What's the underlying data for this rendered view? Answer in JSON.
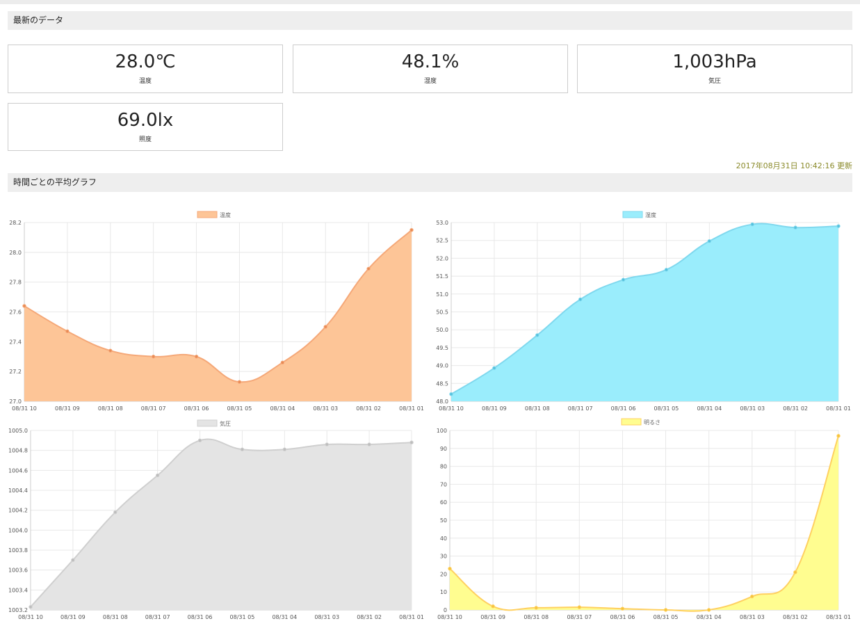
{
  "latest": {
    "title": "最新のデータ",
    "cards": [
      {
        "value": "28.0℃",
        "label": "温度"
      },
      {
        "value": "48.1%",
        "label": "湿度"
      },
      {
        "value": "1,003hPa",
        "label": "気圧"
      },
      {
        "value": "69.0lx",
        "label": "照度"
      }
    ],
    "updated": "2017年08月31日 10:42:16 更新"
  },
  "graphs": {
    "title": "時間ごとの平均グラフ"
  },
  "colors": {
    "temperature_fill": "#fdc597",
    "temperature_line": "#f5a878",
    "temperature_point": "#e88a55",
    "humidity_fill": "#9aedfc",
    "humidity_line": "#7fd8ee",
    "humidity_point": "#55c0dc",
    "pressure_fill": "#e4e4e4",
    "pressure_line": "#cfcfcf",
    "pressure_point": "#bdbdbd",
    "brightness_fill": "#fffd90",
    "brightness_line": "#ffd060",
    "brightness_point": "#f5c43c"
  },
  "chart_data": [
    {
      "type": "area",
      "legend": "温度",
      "x": [
        "08/31 10",
        "08/31 09",
        "08/31 08",
        "08/31 07",
        "08/31 06",
        "08/31 05",
        "08/31 04",
        "08/31 03",
        "08/31 02",
        "08/31 01"
      ],
      "values": [
        27.64,
        27.47,
        27.34,
        27.3,
        27.3,
        27.13,
        27.26,
        27.5,
        27.89,
        28.15
      ],
      "ylim": [
        27.0,
        28.2
      ],
      "yticks": [
        "28.2",
        "28.0",
        "27.8",
        "27.6",
        "27.4",
        "27.2",
        "27.0"
      ],
      "grid": true
    },
    {
      "type": "area",
      "legend": "湿度",
      "x": [
        "08/31 10",
        "08/31 09",
        "08/31 08",
        "08/31 07",
        "08/31 06",
        "08/31 05",
        "08/31 04",
        "08/31 03",
        "08/31 02",
        "08/31 01"
      ],
      "values": [
        48.2,
        48.93,
        49.85,
        50.85,
        51.4,
        51.68,
        52.48,
        52.95,
        52.86,
        52.9
      ],
      "ylim": [
        48.0,
        53.0
      ],
      "yticks": [
        "53.0",
        "52.5",
        "52.0",
        "51.5",
        "51.0",
        "50.5",
        "50.0",
        "49.5",
        "49.0",
        "48.5",
        "48.0"
      ],
      "grid": true
    },
    {
      "type": "area",
      "legend": "気圧",
      "x": [
        "08/31 10",
        "08/31 09",
        "08/31 08",
        "08/31 07",
        "08/31 06",
        "08/31 05",
        "08/31 04",
        "08/31 03",
        "08/31 02",
        "08/31 01"
      ],
      "values": [
        1003.23,
        1003.7,
        1004.18,
        1004.55,
        1004.9,
        1004.81,
        1004.81,
        1004.86,
        1004.86,
        1004.88
      ],
      "ylim": [
        1003.2,
        1005.0
      ],
      "yticks": [
        "1005.0",
        "1004.8",
        "1004.6",
        "1004.4",
        "1004.2",
        "1004.0",
        "1003.8",
        "1003.6",
        "1003.4",
        "1003.2"
      ],
      "grid": true
    },
    {
      "type": "area",
      "legend": "明るさ",
      "x": [
        "08/31 10",
        "08/31 09",
        "08/31 08",
        "08/31 07",
        "08/31 06",
        "08/31 05",
        "08/31 04",
        "08/31 03",
        "08/31 02",
        "08/31 01"
      ],
      "values": [
        23,
        2,
        1.2,
        1.5,
        0.7,
        0,
        0,
        7.5,
        21,
        97
      ],
      "ylim": [
        0,
        100
      ],
      "yticks": [
        "100",
        "90",
        "80",
        "70",
        "60",
        "50",
        "40",
        "30",
        "20",
        "10",
        "0"
      ],
      "grid": true
    }
  ]
}
